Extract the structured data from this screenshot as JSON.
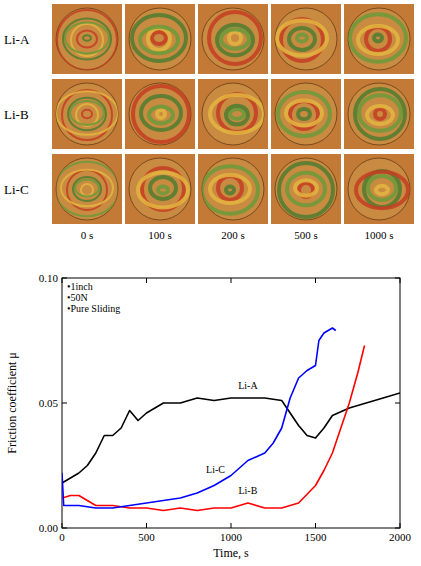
{
  "image_grid": {
    "rows": [
      "Li-A",
      "Li-B",
      "Li-C"
    ],
    "columns": [
      "0 s",
      "100 s",
      "200 s",
      "500 s",
      "1000 s"
    ]
  },
  "chart_data": {
    "type": "line",
    "x_label": "Time, s",
    "y_label": "Friction coefficient μ",
    "annotations": [
      "•1inch",
      "•50N",
      "•Pure Sliding"
    ],
    "xlim": [
      0,
      2000
    ],
    "xticks": [
      0,
      500,
      1000,
      1500,
      2000
    ],
    "ylim": [
      0,
      0.1
    ],
    "yticks": [
      {
        "value": 0,
        "label": "0.00"
      },
      {
        "value": 0.05,
        "label": "0.05"
      },
      {
        "value": 0.1,
        "label": "0.10"
      }
    ],
    "series": [
      {
        "name": "Li-A",
        "color": "#000000",
        "x": [
          0,
          50,
          100,
          150,
          200,
          250,
          300,
          350,
          400,
          450,
          500,
          600,
          700,
          800,
          900,
          1000,
          1100,
          1200,
          1300,
          1350,
          1400,
          1450,
          1500,
          1550,
          1600,
          1700,
          1800,
          1900,
          2000
        ],
        "values": [
          0.018,
          0.02,
          0.022,
          0.025,
          0.03,
          0.037,
          0.037,
          0.04,
          0.047,
          0.043,
          0.046,
          0.05,
          0.05,
          0.052,
          0.051,
          0.052,
          0.052,
          0.052,
          0.051,
          0.046,
          0.041,
          0.037,
          0.036,
          0.04,
          0.045,
          0.048,
          0.05,
          0.052,
          0.054
        ]
      },
      {
        "name": "Li-B",
        "color": "#ff0000",
        "x": [
          0,
          50,
          100,
          150,
          200,
          300,
          400,
          500,
          600,
          700,
          800,
          900,
          1000,
          1100,
          1200,
          1300,
          1400,
          1500,
          1550,
          1600,
          1650,
          1700,
          1750,
          1790
        ],
        "values": [
          0.012,
          0.013,
          0.013,
          0.011,
          0.009,
          0.009,
          0.008,
          0.008,
          0.007,
          0.008,
          0.007,
          0.008,
          0.008,
          0.01,
          0.008,
          0.008,
          0.01,
          0.017,
          0.023,
          0.03,
          0.04,
          0.05,
          0.062,
          0.073
        ]
      },
      {
        "name": "Li-C",
        "color": "#0000ff",
        "x": [
          0,
          10,
          100,
          200,
          300,
          400,
          500,
          600,
          700,
          800,
          900,
          1000,
          1100,
          1200,
          1250,
          1300,
          1350,
          1400,
          1450,
          1500,
          1520,
          1550,
          1600,
          1620
        ],
        "values": [
          0.022,
          0.009,
          0.009,
          0.008,
          0.008,
          0.009,
          0.01,
          0.011,
          0.012,
          0.014,
          0.017,
          0.021,
          0.027,
          0.03,
          0.034,
          0.04,
          0.052,
          0.06,
          0.063,
          0.065,
          0.075,
          0.078,
          0.08,
          0.079
        ]
      }
    ]
  }
}
